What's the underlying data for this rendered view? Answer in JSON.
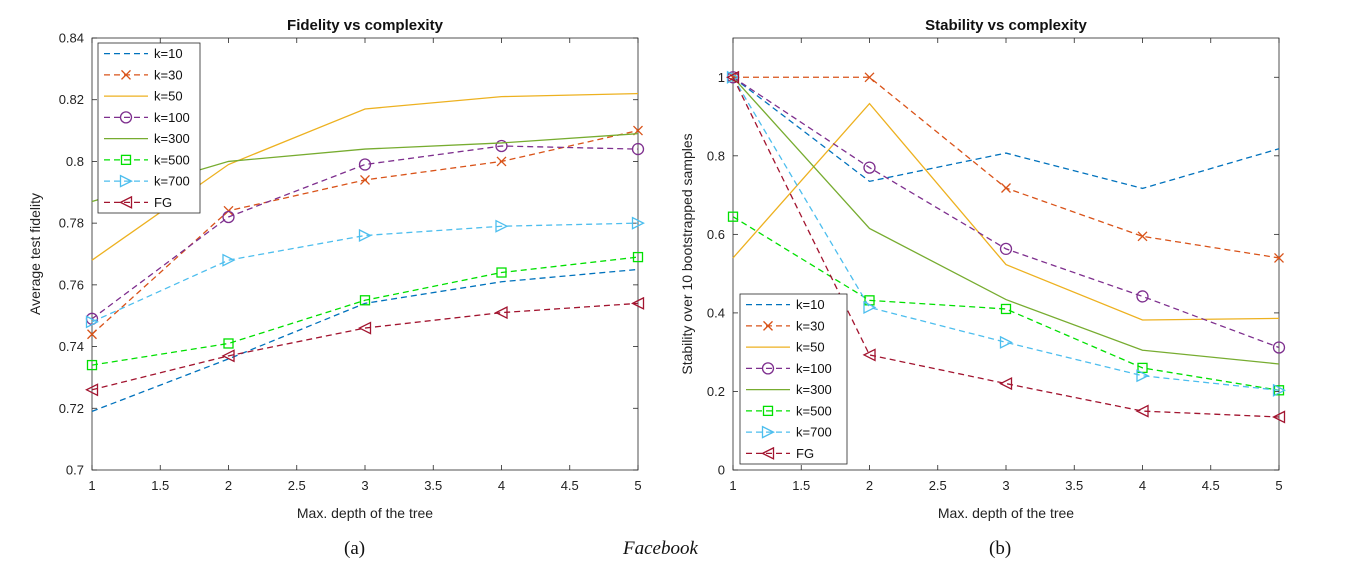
{
  "chart_data": [
    {
      "type": "line",
      "title": "Fidelity vs complexity",
      "xlabel": "Max. depth of the tree",
      "ylabel": "Average test fidelity",
      "xlim": [
        1,
        5
      ],
      "ylim": [
        0.7,
        0.84
      ],
      "xticks": [
        "1",
        "1.5",
        "2",
        "2.5",
        "3",
        "3.5",
        "4",
        "4.5",
        "5"
      ],
      "yticks": [
        "0.7",
        "0.72",
        "0.74",
        "0.76",
        "0.78",
        "0.8",
        "0.82",
        "0.84"
      ],
      "x": [
        1,
        2,
        3,
        4,
        5
      ],
      "legend_position": "top-left",
      "grid": false,
      "series": [
        {
          "name": "k=10",
          "color": "#0072BD",
          "dash": "dashed",
          "marker": "none",
          "values": [
            0.719,
            0.736,
            0.754,
            0.761,
            0.765
          ]
        },
        {
          "name": "k=30",
          "color": "#D95319",
          "dash": "dashed",
          "marker": "x",
          "values": [
            0.744,
            0.784,
            0.794,
            0.8,
            0.81
          ]
        },
        {
          "name": "k=50",
          "color": "#EDB120",
          "dash": "solid",
          "marker": "none",
          "values": [
            0.768,
            0.799,
            0.817,
            0.821,
            0.822
          ]
        },
        {
          "name": "k=100",
          "color": "#7E2F8E",
          "dash": "dashed",
          "marker": "circle",
          "values": [
            0.749,
            0.782,
            0.799,
            0.805,
            0.804
          ]
        },
        {
          "name": "k=300",
          "color": "#77AC30",
          "dash": "solid",
          "marker": "none",
          "values": [
            0.787,
            0.8,
            0.804,
            0.806,
            0.809
          ]
        },
        {
          "name": "k=500",
          "color": "#00E000",
          "dash": "dashed",
          "marker": "square",
          "values": [
            0.734,
            0.741,
            0.755,
            0.764,
            0.769
          ]
        },
        {
          "name": "k=700",
          "color": "#4DBEEE",
          "dash": "dashed",
          "marker": "triangle-right",
          "values": [
            0.748,
            0.768,
            0.776,
            0.779,
            0.78
          ]
        },
        {
          "name": "FG",
          "color": "#A2142F",
          "dash": "dashed",
          "marker": "triangle-left",
          "values": [
            0.726,
            0.737,
            0.746,
            0.751,
            0.754
          ]
        }
      ]
    },
    {
      "type": "line",
      "title": "Stability vs complexity",
      "xlabel": "Max. depth of the tree",
      "ylabel": "Stability over 10 bootstrapped samples",
      "xlim": [
        1,
        5
      ],
      "ylim": [
        0,
        1.1
      ],
      "xticks": [
        "1",
        "1.5",
        "2",
        "2.5",
        "3",
        "3.5",
        "4",
        "4.5",
        "5"
      ],
      "yticks": [
        "0",
        "0.2",
        "0.4",
        "0.6",
        "0.8",
        "1"
      ],
      "x": [
        1,
        2,
        3,
        4,
        5
      ],
      "legend_position": "bottom-left",
      "grid": false,
      "series": [
        {
          "name": "k=10",
          "color": "#0072BD",
          "dash": "dashed",
          "marker": "none",
          "values": [
            1.0,
            0.735,
            0.807,
            0.717,
            0.818
          ]
        },
        {
          "name": "k=30",
          "color": "#D95319",
          "dash": "dashed",
          "marker": "x",
          "values": [
            1.0,
            1.0,
            0.718,
            0.595,
            0.54
          ]
        },
        {
          "name": "k=50",
          "color": "#EDB120",
          "dash": "solid",
          "marker": "none",
          "values": [
            0.54,
            0.933,
            0.523,
            0.382,
            0.386
          ]
        },
        {
          "name": "k=100",
          "color": "#7E2F8E",
          "dash": "dashed",
          "marker": "circle",
          "values": [
            1.0,
            0.77,
            0.563,
            0.442,
            0.312
          ]
        },
        {
          "name": "k=300",
          "color": "#77AC30",
          "dash": "solid",
          "marker": "none",
          "values": [
            1.0,
            0.615,
            0.434,
            0.305,
            0.27
          ]
        },
        {
          "name": "k=500",
          "color": "#00E000",
          "dash": "dashed",
          "marker": "square",
          "values": [
            0.645,
            0.432,
            0.41,
            0.26,
            0.203
          ]
        },
        {
          "name": "k=700",
          "color": "#4DBEEE",
          "dash": "dashed",
          "marker": "triangle-right",
          "values": [
            1.0,
            0.414,
            0.325,
            0.24,
            0.203
          ]
        },
        {
          "name": "FG",
          "color": "#A2142F",
          "dash": "dashed",
          "marker": "triangle-left",
          "values": [
            1.0,
            0.293,
            0.22,
            0.15,
            0.135
          ]
        }
      ]
    }
  ],
  "captions": {
    "left": "(a)",
    "center": "Facebook",
    "right": "(b)"
  }
}
